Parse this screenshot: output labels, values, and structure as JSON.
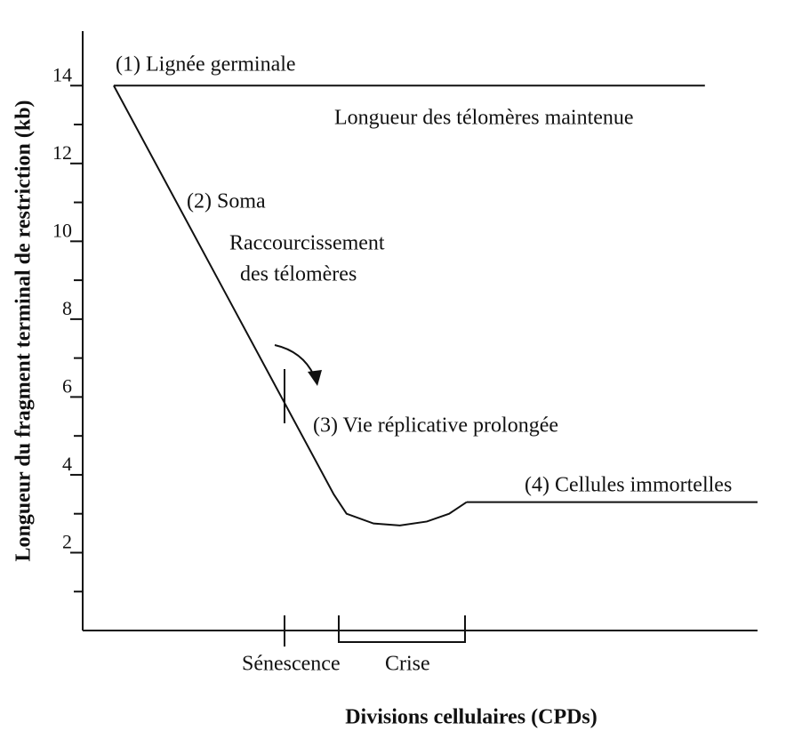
{
  "chart_data": {
    "type": "line",
    "x_label": "Divisions cellulaires (CPDs)",
    "y_label": "Longueur du  fragment terminal de restriction (kb)",
    "xlim": [
      0,
      100
    ],
    "ylim": [
      0,
      15.4
    ],
    "yticks": [
      2,
      4,
      6,
      8,
      10,
      12,
      14
    ],
    "minor_yticks": [
      1,
      3,
      5,
      7,
      9,
      11,
      13
    ],
    "series": [
      {
        "x": [
          4.6,
          92.2
        ],
        "values": [
          14,
          14
        ],
        "color": "#111111"
      },
      {
        "x": [
          4.6,
          37.2,
          39.1,
          43.1,
          47.0,
          51.0,
          54.3,
          56.9
        ],
        "values": [
          14,
          3.5,
          3.0,
          2.75,
          2.7,
          2.8,
          3.0,
          3.3
        ],
        "color": "#111111"
      },
      {
        "x": [
          56.9,
          100
        ],
        "values": [
          3.3,
          3.3
        ],
        "color": "#111111"
      }
    ],
    "annotations": [
      "(1) Lignée germinale",
      "Longueur des télomères maintenue",
      "(2) Soma",
      "Raccourcissement",
      "des télomères",
      "(3) Vie réplicative prolongée",
      "(4) Cellules immortelles"
    ],
    "x_markers": [
      "Sénescence",
      "Crise"
    ]
  }
}
